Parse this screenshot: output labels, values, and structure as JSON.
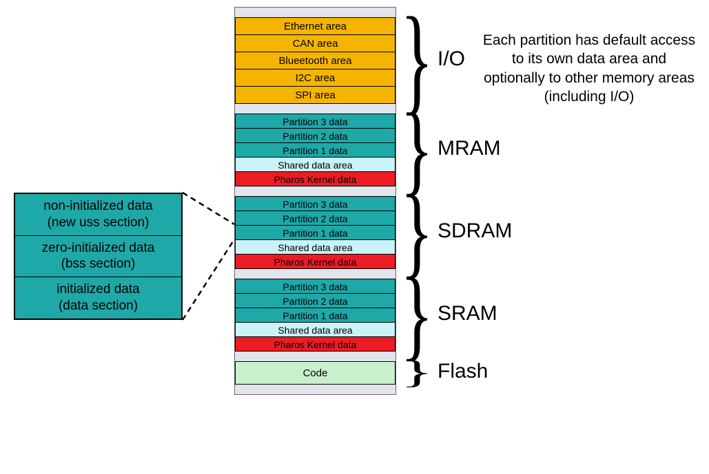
{
  "colors": {
    "stack_bg": "#e3e5ec",
    "io_fill": "#f4b400",
    "partition_fill": "#1fa8a8",
    "shared_fill": "#c9f3f7",
    "kernel_fill": "#ec1c24",
    "code_fill": "#c9f0cd",
    "detail_fill": "#1fa8a8",
    "text_black": "#000000"
  },
  "detail": {
    "rows": [
      "non-initialized data\n(new uss section)",
      "zero-initialized data\n(bss section)",
      "initialized data\n(data section)"
    ]
  },
  "stack": {
    "io": [
      "Ethernet area",
      "CAN area",
      "Blueetooth area",
      "I2C area",
      "SPI area"
    ],
    "mram": [
      "Partition 3 data",
      "Partition 2 data",
      "Partition 1 data",
      "Shared data area",
      "Pharos Kernel data"
    ],
    "sdram": [
      "Partition 3 data",
      "Partition 2 data",
      "Partition 1 data",
      "Shared data area",
      "Pharos Kernel data"
    ],
    "sram": [
      "Partition 3 data",
      "Partition 2 data",
      "Partition 1 data",
      "Shared data area",
      "Pharos Kernel data"
    ],
    "flash": "Code"
  },
  "labels": {
    "io": "I/O",
    "mram": "MRAM",
    "sdram": "SDRAM",
    "sram": "SRAM",
    "flash": "Flash"
  },
  "description": "Each partition has default access to its own data area and optionally to other memory areas (including I/O)",
  "row_styles": {
    "Partition 3 data": "partition_fill",
    "Partition 2 data": "partition_fill",
    "Partition 1 data": "partition_fill",
    "Shared data area": "shared_fill",
    "Pharos Kernel data": "kernel_fill"
  }
}
